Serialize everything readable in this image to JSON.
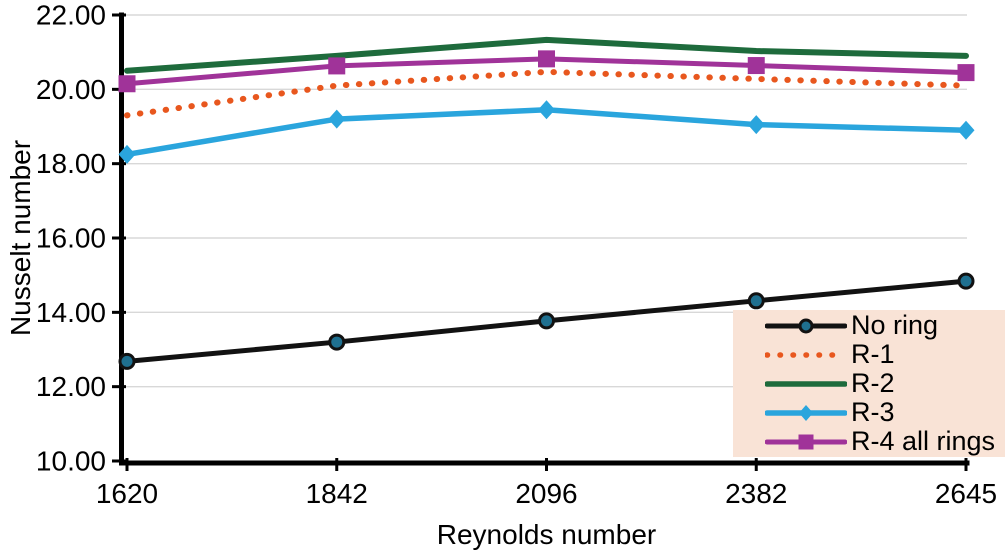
{
  "figure": {
    "background": "#FFFFFF"
  },
  "chart_data": {
    "type": "line",
    "title": "",
    "xlabel": "Reynolds number",
    "ylabel": "Nusselt number",
    "x_type": "categorical",
    "categories": [
      "1620",
      "1842",
      "2096",
      "2382",
      "2645"
    ],
    "ylim": [
      10,
      22
    ],
    "y_ticks": [
      10,
      12,
      14,
      16,
      18,
      20,
      22
    ],
    "y_tick_labels": [
      "10.00",
      "12.00",
      "14.00",
      "16.00",
      "18.00",
      "20.00",
      "22.00"
    ],
    "grid": "horizontal-gridlines",
    "gridline_color": "#D8D8D8",
    "axis_color": "#000000",
    "legend": {
      "position": "inside-bottom-right",
      "background": "#F9E3D6",
      "items": [
        "No ring",
        "R-1",
        "R-2",
        "R-3",
        "R-4 all rings"
      ]
    },
    "series": [
      {
        "name": "No ring",
        "color": "#121212",
        "line_style": "solid",
        "line_width": 5,
        "marker": "circle",
        "marker_fill": "#1F7090",
        "marker_outline": "#121212",
        "values": [
          12.68,
          13.2,
          13.77,
          14.31,
          14.84
        ]
      },
      {
        "name": "R-1",
        "color": "#E8571E",
        "line_style": "dotted",
        "line_width": 6,
        "marker": "none",
        "marker_fill": "",
        "marker_outline": "",
        "values": [
          19.3,
          20.1,
          20.47,
          20.28,
          20.1
        ]
      },
      {
        "name": "R-2",
        "color": "#1E6B3C",
        "line_style": "solid",
        "line_width": 6,
        "marker": "none",
        "marker_fill": "",
        "marker_outline": "",
        "values": [
          20.5,
          20.9,
          21.33,
          21.03,
          20.9
        ]
      },
      {
        "name": "R-3",
        "color": "#2AA5DD",
        "line_style": "solid",
        "line_width": 5.5,
        "marker": "diamond",
        "marker_fill": "#2AA5DD",
        "marker_outline": "",
        "values": [
          18.25,
          19.2,
          19.45,
          19.05,
          18.9
        ]
      },
      {
        "name": "R-4 all rings",
        "color": "#A03399",
        "line_style": "solid",
        "line_width": 5,
        "marker": "square",
        "marker_fill": "#A03399",
        "marker_outline": "",
        "values": [
          20.15,
          20.63,
          20.82,
          20.64,
          20.45
        ]
      }
    ]
  }
}
